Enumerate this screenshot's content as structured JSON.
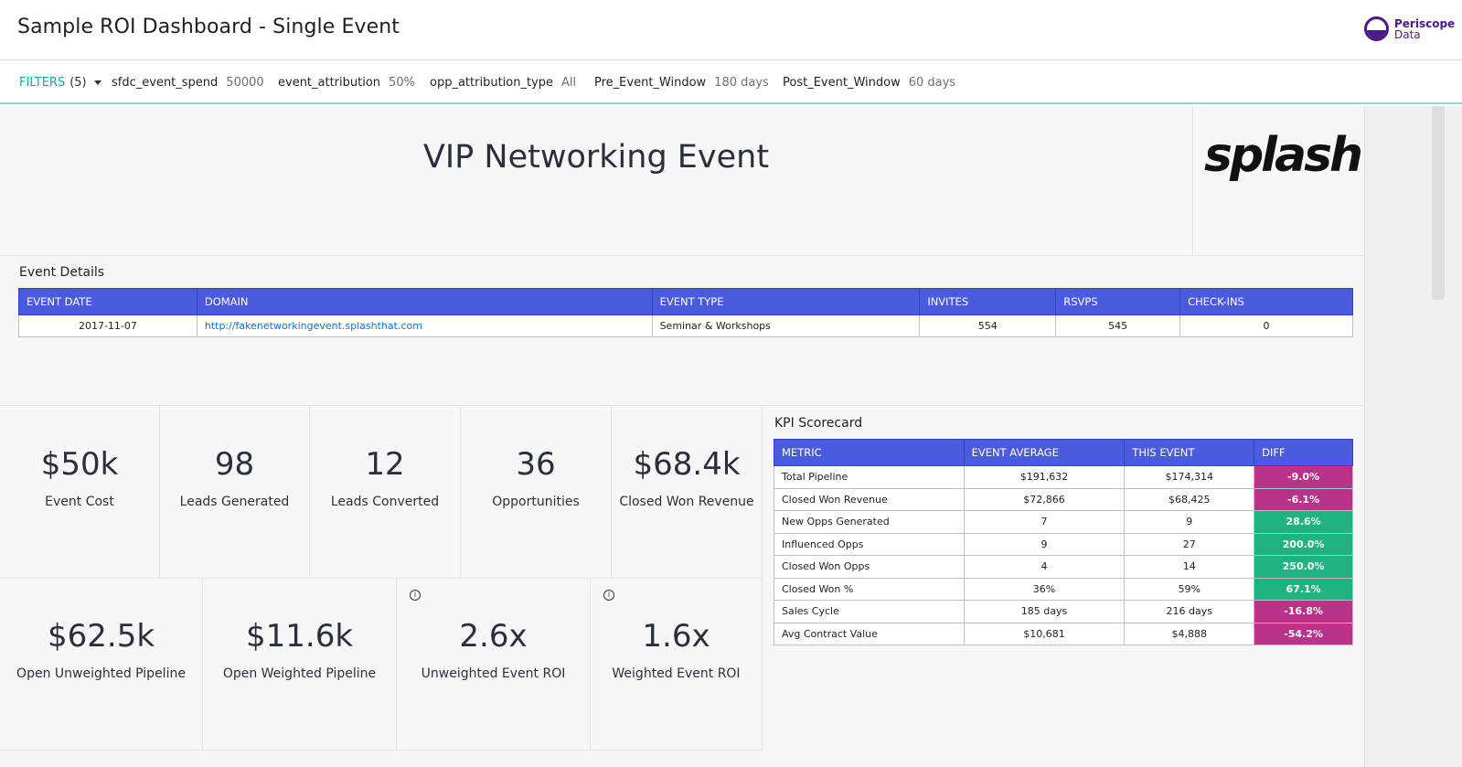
{
  "header": {
    "title": "Sample ROI Dashboard - Single Event",
    "brand_line1": "Periscope",
    "brand_line2": "Data",
    "brand_color": "#4b1a86"
  },
  "filters": {
    "toggle_label": "FILTERS",
    "toggle_count": "(5)",
    "items": [
      {
        "key": "sfdc_event_spend",
        "value": "50000"
      },
      {
        "key": "event_attribution",
        "value": "50%"
      },
      {
        "key": "opp_attribution_type",
        "value": "All"
      },
      {
        "key": "Pre_Event_Window",
        "value": "180 days"
      },
      {
        "key": "Post_Event_Window",
        "value": "60 days"
      }
    ]
  },
  "event": {
    "name": "VIP Networking Event",
    "logo_text": "splash"
  },
  "details": {
    "label": "Event Details",
    "columns": [
      "EVENT DATE",
      "DOMAIN",
      "EVENT TYPE",
      "INVITES",
      "RSVPS",
      "CHECK-INS"
    ],
    "row": {
      "date": "2017-11-07",
      "domain": "http://fakenetworkingevent.splashthat.com",
      "type": "Seminar & Workshops",
      "invites": "554",
      "rsvps": "545",
      "checkins": "0"
    }
  },
  "tiles_top": [
    {
      "value": "$50k",
      "label": "Event Cost"
    },
    {
      "value": "98",
      "label": "Leads Generated"
    },
    {
      "value": "12",
      "label": "Leads Converted"
    },
    {
      "value": "36",
      "label": "Opportunities"
    },
    {
      "value": "$68.4k",
      "label": "Closed Won Revenue"
    }
  ],
  "tiles_bottom": [
    {
      "value": "$62.5k",
      "label": "Open Unweighted Pipeline"
    },
    {
      "value": "$11.6k",
      "label": "Open Weighted Pipeline"
    },
    {
      "value": "2.6x",
      "label": "Unweighted Event ROI"
    },
    {
      "value": "1.6x",
      "label": "Weighted Event ROI"
    }
  ],
  "kpi": {
    "label": "KPI Scorecard",
    "columns": [
      "METRIC",
      "EVENT AVERAGE",
      "THIS EVENT",
      "DIFF"
    ],
    "rows": [
      {
        "metric": "Total Pipeline",
        "avg": "$191,632",
        "this": "$174,314",
        "diff": "-9.0%",
        "color": "#b8338a"
      },
      {
        "metric": "Closed Won Revenue",
        "avg": "$72,866",
        "this": "$68,425",
        "diff": "-6.1%",
        "color": "#b8338a"
      },
      {
        "metric": "New Opps Generated",
        "avg": "7",
        "this": "9",
        "diff": "28.6%",
        "color": "#1fb47f"
      },
      {
        "metric": "Influenced Opps",
        "avg": "9",
        "this": "27",
        "diff": "200.0%",
        "color": "#1fb47f"
      },
      {
        "metric": "Closed Won Opps",
        "avg": "4",
        "this": "14",
        "diff": "250.0%",
        "color": "#1fb47f"
      },
      {
        "metric": "Closed Won %",
        "avg": "36%",
        "this": "59%",
        "diff": "67.1%",
        "color": "#1fb47f"
      },
      {
        "metric": "Sales Cycle",
        "avg": "185 days",
        "this": "216 days",
        "diff": "-16.8%",
        "color": "#b8338a"
      },
      {
        "metric": "Avg Contract Value",
        "avg": "$10,681",
        "this": "$4,888",
        "diff": "-54.2%",
        "color": "#b8338a"
      }
    ]
  },
  "colors": {
    "header_blue": "#4a5be0",
    "accent_teal": "#14a99b",
    "negative": "#b8338a",
    "positive": "#1fb47f"
  }
}
